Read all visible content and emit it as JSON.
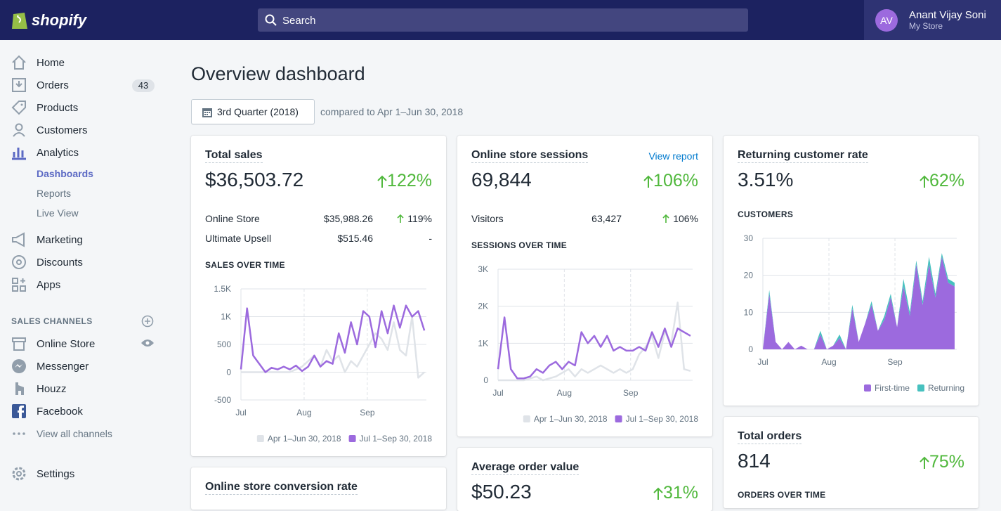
{
  "header": {
    "logo": "shopify",
    "search_placeholder": "Search",
    "user": {
      "initials": "AV",
      "name": "Anant Vijay Soni",
      "store": "My Store"
    }
  },
  "sidebar": {
    "nav": [
      {
        "label": "Home"
      },
      {
        "label": "Orders",
        "badge": 43
      },
      {
        "label": "Products"
      },
      {
        "label": "Customers"
      },
      {
        "label": "Analytics",
        "children": [
          "Dashboards",
          "Reports",
          "Live View"
        ]
      },
      {
        "label": "Marketing"
      },
      {
        "label": "Discounts"
      },
      {
        "label": "Apps"
      }
    ],
    "channels_heading": "SALES CHANNELS",
    "channels": [
      "Online Store",
      "Messenger",
      "Houzz",
      "Facebook"
    ],
    "view_all": "View all channels",
    "settings": "Settings"
  },
  "page": {
    "title": "Overview dashboard",
    "date_range": "3rd Quarter (2018)",
    "comparison": "compared to Apr 1–Jun 30, 2018"
  },
  "cards": [
    {
      "title": "Total sales",
      "value": "$36,503.72",
      "change": "122%",
      "rows": [
        {
          "label": "Online Store",
          "value": "$35,988.26",
          "change": "119%"
        },
        {
          "label": "Ultimate Upsell",
          "value": "$515.46",
          "change": "-"
        }
      ],
      "chart_title": "SALES OVER TIME",
      "chart": {
        "type": "line",
        "xlim": [
          0,
          91
        ],
        "xticks": [
          {
            "value": 0,
            "label": "Jul"
          },
          {
            "value": 31,
            "label": "Aug"
          },
          {
            "value": 62,
            "label": "Sep"
          }
        ],
        "ylim": [
          -500,
          1500
        ],
        "yticks": [
          -500,
          0,
          500,
          {
            "value": 1000,
            "label": "1K"
          },
          {
            "value": 1500,
            "label": "1.5K"
          }
        ],
        "x": [
          0,
          3,
          6,
          9,
          12,
          15,
          18,
          21,
          24,
          27,
          30,
          33,
          36,
          39,
          42,
          45,
          48,
          51,
          54,
          57,
          60,
          63,
          66,
          69,
          72,
          75,
          78,
          81,
          84,
          87,
          90
        ],
        "series": [
          {
            "name": "Apr 1–Jun 30, 2018",
            "color": "#dfe3e8",
            "values": [
              0,
              0,
              0,
              0,
              0,
              0,
              0,
              0,
              0,
              50,
              100,
              200,
              300,
              100,
              400,
              200,
              300,
              0,
              200,
              100,
              300,
              500,
              700,
              600,
              400,
              900,
              400,
              300,
              1000,
              -100,
              0
            ]
          },
          {
            "name": "Jul 1–Sep 30, 2018",
            "color": "#9c6ade",
            "values": [
              50,
              1150,
              300,
              150,
              0,
              80,
              50,
              100,
              50,
              120,
              20,
              100,
              300,
              100,
              200,
              150,
              700,
              350,
              900,
              500,
              1100,
              1000,
              450,
              1100,
              700,
              1200,
              800,
              1200,
              1000,
              1100,
              750
            ]
          }
        ]
      }
    },
    {
      "title": "Online store sessions",
      "link": "View report",
      "value": "69,844",
      "change": "106%",
      "rows": [
        {
          "label": "Visitors",
          "value": "63,427",
          "change": "106%"
        }
      ],
      "chart_title": "SESSIONS OVER TIME",
      "chart": {
        "type": "line",
        "xlim": [
          0,
          91
        ],
        "xticks": [
          {
            "value": 0,
            "label": "Jul"
          },
          {
            "value": 31,
            "label": "Aug"
          },
          {
            "value": 62,
            "label": "Sep"
          }
        ],
        "ylim": [
          0,
          3000
        ],
        "yticks": [
          0,
          {
            "value": 1000,
            "label": "1K"
          },
          {
            "value": 2000,
            "label": "2K"
          },
          {
            "value": 3000,
            "label": "3K"
          }
        ],
        "x": [
          0,
          3,
          6,
          9,
          12,
          15,
          18,
          21,
          24,
          27,
          30,
          33,
          36,
          39,
          42,
          45,
          48,
          51,
          54,
          57,
          60,
          63,
          66,
          69,
          72,
          75,
          78,
          81,
          84,
          87,
          90
        ],
        "series": [
          {
            "name": "Apr 1–Jun 30, 2018",
            "color": "#dfe3e8",
            "values": [
              0,
              0,
              0,
              0,
              0,
              50,
              100,
              0,
              50,
              100,
              200,
              300,
              100,
              300,
              200,
              300,
              400,
              300,
              200,
              300,
              200,
              300,
              700,
              900,
              1200,
              600,
              1300,
              1000,
              2100,
              300,
              250
            ]
          },
          {
            "name": "Jul 1–Sep 30, 2018",
            "color": "#9c6ade",
            "values": [
              300,
              1700,
              300,
              50,
              50,
              100,
              300,
              200,
              400,
              500,
              300,
              500,
              400,
              1300,
              1000,
              1200,
              900,
              1200,
              800,
              900,
              800,
              800,
              900,
              800,
              1300,
              900,
              1400,
              900,
              1400,
              1300,
              1200
            ]
          }
        ]
      }
    },
    {
      "title": "Returning customer rate",
      "value": "3.51%",
      "change": "62%",
      "chart_title": "CUSTOMERS",
      "chart": {
        "type": "area",
        "stacked": true,
        "xlim": [
          0,
          91
        ],
        "xticks": [
          {
            "value": 0,
            "label": "Jul"
          },
          {
            "value": 31,
            "label": "Aug"
          },
          {
            "value": 62,
            "label": "Sep"
          }
        ],
        "ylim": [
          0,
          30
        ],
        "yticks": [
          0,
          10,
          20,
          30
        ],
        "x": [
          0,
          3,
          6,
          9,
          12,
          15,
          18,
          21,
          24,
          27,
          30,
          33,
          36,
          39,
          42,
          45,
          48,
          51,
          54,
          57,
          60,
          63,
          66,
          69,
          72,
          75,
          78,
          81,
          84,
          87,
          90
        ],
        "series": [
          {
            "name": "First-time",
            "color": "#9c6ade",
            "values": [
              0,
              15,
              2,
              0,
              2,
              0,
              1,
              0,
              0,
              4,
              0,
              1,
              3,
              0,
              11,
              2,
              7,
              12,
              5,
              8,
              14,
              6,
              17,
              9,
              23,
              12,
              23,
              14,
              25,
              18,
              17
            ]
          },
          {
            "name": "Returning",
            "color": "#47c1bf",
            "values": [
              0,
              1,
              0,
              0,
              0,
              0,
              0,
              0,
              0,
              1,
              0,
              0,
              1,
              0,
              1,
              0,
              0,
              1,
              0,
              1,
              1,
              0,
              2,
              1,
              1,
              1,
              2,
              1,
              1,
              1,
              1
            ]
          }
        ]
      }
    },
    {
      "title": "Total orders",
      "value": "814",
      "change": "75%",
      "chart_title": "ORDERS OVER TIME"
    },
    {
      "title": "Average order value",
      "value": "$50.23",
      "change": "31%"
    },
    {
      "title": "Online store conversion rate"
    }
  ]
}
